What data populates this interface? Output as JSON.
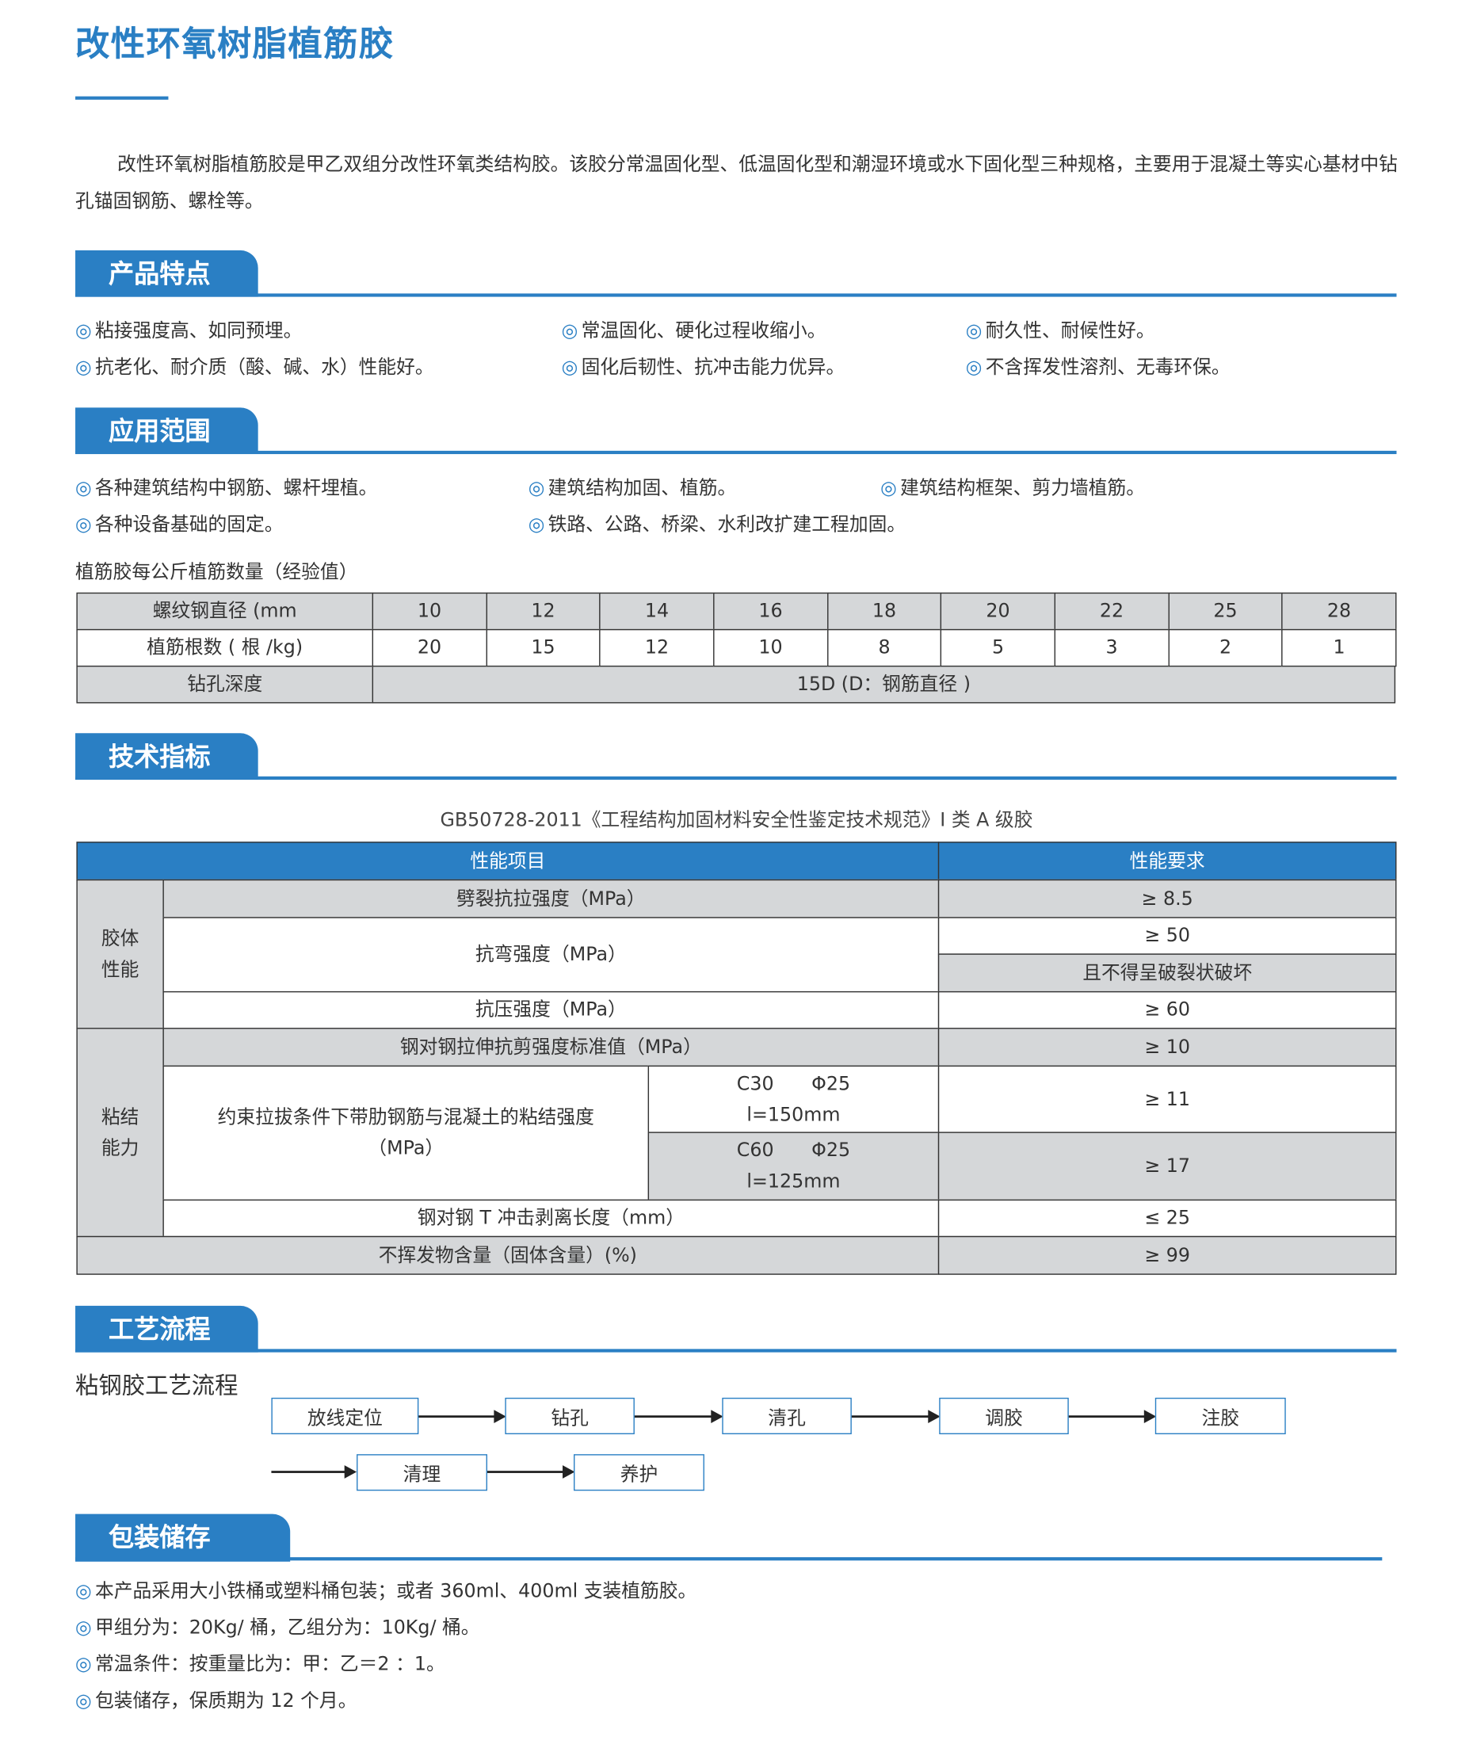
{
  "title": "改性环氧树脂植筋胶",
  "intro": "改性环氧树脂植筋胶是甲乙双组分改性环氧类结构胶。该胶分常温固化型、低温固化型和潮湿环境或水下固化型三种规格，主要用于混凝土等实心基材中钻孔锚固钢筋、螺栓等。",
  "bullet": "◎",
  "accent_color": "#2a7fc4",
  "features": {
    "heading": "产品特点",
    "items": [
      "粘接强度高、如同预埋。",
      "常温固化、硬化过程收缩小。",
      "耐久性、耐候性好。",
      "抗老化、耐介质（酸、碱、水）性能好。",
      "固化后韧性、抗冲击能力优异。",
      "不含挥发性溶剂、无毒环保。"
    ]
  },
  "applications": {
    "heading": "应用范围",
    "items": [
      "各种建筑结构中钢筋、螺杆埋植。",
      "建筑结构加固、植筋。",
      "建筑结构框架、剪力墙植筋。",
      "各种设备基础的固定。",
      "铁路、公路、桥梁、水利改扩建工程加固。"
    ]
  },
  "rebar_table": {
    "title": "植筋胶每公斤植筋数量（经验值）",
    "row_labels": [
      "螺纹钢直径 (mm",
      "植筋根数 ( 根 /kg)",
      "钻孔深度"
    ],
    "diameters": [
      "10",
      "12",
      "14",
      "16",
      "18",
      "20",
      "22",
      "25",
      "28"
    ],
    "counts": [
      "20",
      "15",
      "12",
      "10",
      "8",
      "5",
      "3",
      "2",
      "1"
    ],
    "depth": "15D (D：钢筋直径 )"
  },
  "specs": {
    "heading": "技术指标",
    "caption": "GB50728-2011《工程结构加固材料安全性鉴定技术规范》I 类 A 级胶",
    "header": [
      "性能项目",
      "性能要求"
    ],
    "group1": "胶体\n性能",
    "group2": "粘结\n能力",
    "rows": [
      {
        "item": "劈裂抗拉强度（MPa）",
        "req": "≥ 8.5"
      },
      {
        "item": "抗弯强度（MPa）",
        "req": "≥ 50",
        "req2": "且不得呈破裂状破坏"
      },
      {
        "item": "抗压强度（MPa）",
        "req": "≥ 60"
      },
      {
        "item": "钢对钢拉伸抗剪强度标准值（MPa）",
        "req": "≥ 10"
      },
      {
        "item": "约束拉拔条件下带肋钢筋与混凝土的粘结强度（MPa）",
        "cond1": "C30　　Φ25\nl=150mm",
        "req": "≥ 11",
        "cond2": "C60　　Φ25\nl=125mm",
        "req2": "≥ 17"
      },
      {
        "item": "钢对钢 T 冲击剥离长度（mm）",
        "req": "≤ 25"
      },
      {
        "item": "不挥发物含量（固体含量）(%)",
        "req": "≥ 99"
      }
    ]
  },
  "process": {
    "heading": "工艺流程",
    "subtitle": "粘钢胶工艺流程",
    "steps": [
      "放线定位",
      "钻孔",
      "清孔",
      "调胶",
      "注胶",
      "清理",
      "养护"
    ]
  },
  "packaging": {
    "heading": "包装储存",
    "items": [
      "本产品采用大小铁桶或塑料桶包装；或者 360ml、400ml 支装植筋胶。",
      "甲组分为：20Kg/ 桶，乙组分为：10Kg/ 桶。",
      "常温条件：按重量比为：甲：乙＝2 ：1。",
      "包装储存，保质期为 12 个月。"
    ]
  }
}
